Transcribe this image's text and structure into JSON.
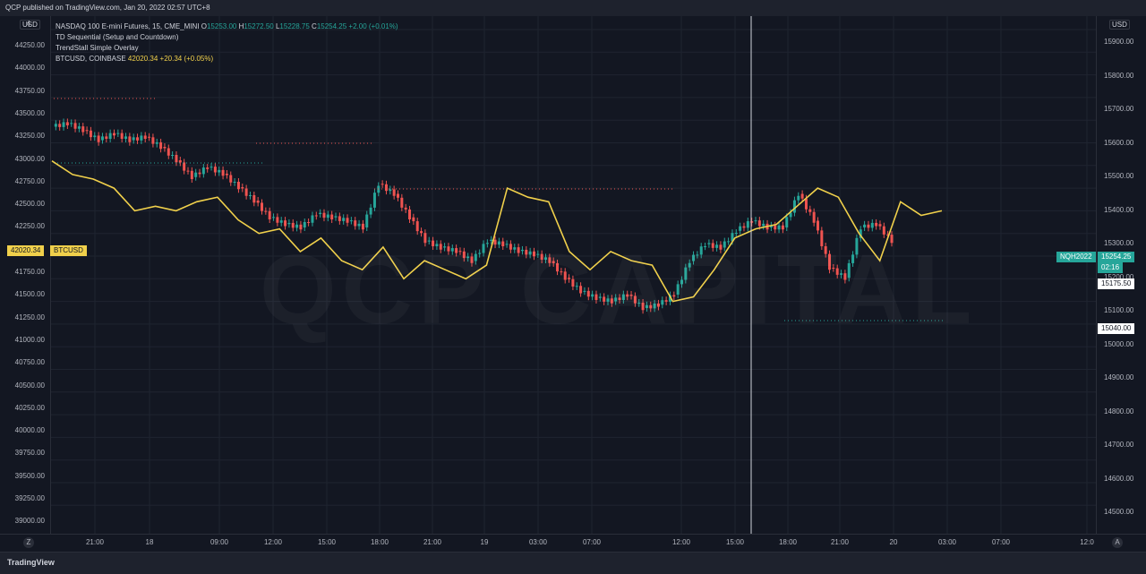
{
  "header": {
    "published": "QCP published on TradingView.com, Jan 20, 2022 02:57 UTC+8"
  },
  "legend": {
    "symbol": "NASDAQ 100 E-mini Futures, 15, CME_MINI",
    "o_label": "O",
    "o_value": "15253.00",
    "h_label": "H",
    "h_value": "15272.50",
    "l_label": "L",
    "l_value": "15228.75",
    "c_label": "C",
    "c_value": "15254.25",
    "change": "+2.00 (+0.01%)",
    "indicator1": "TD Sequential (Setup and Countdown)",
    "indicator2": "TrendStall Simple Overlay",
    "overlay_symbol": "BTCUSD, COINBASE",
    "overlay_value": "42020.34",
    "overlay_change": "+20.34 (+0.05%)"
  },
  "left_axis": {
    "currency": "USD",
    "top_partial": "4",
    "ticks": [
      "44250.00",
      "44000.00",
      "43750.00",
      "43500.00",
      "43250.00",
      "43000.00",
      "42750.00",
      "42500.00",
      "42250.00",
      "41750.00",
      "41500.00",
      "41250.00",
      "41000.00",
      "40750.00",
      "40500.00",
      "40250.00",
      "40000.00",
      "39750.00",
      "39500.00",
      "39250.00",
      "39000.00"
    ],
    "btc_price_label": "42020.34",
    "btc_symbol_label": "BTCUSD"
  },
  "right_axis": {
    "currency": "USD",
    "ticks": [
      "15900.00",
      "15800.00",
      "15700.00",
      "15600.00",
      "15500.00",
      "15400.00",
      "15300.00",
      "15200.00",
      "15100.00",
      "15000.00",
      "14900.00",
      "14800.00",
      "14700.00",
      "14600.00",
      "14500.00"
    ],
    "symbol_label": "NQH2022",
    "price_label": "15254.25",
    "countdown_label": "02:16",
    "marker_upper": "15175.50",
    "marker_lower": "15040.00"
  },
  "time_axis": {
    "ticks": [
      "21:00",
      "18",
      "09:00",
      "12:00",
      "15:00",
      "18:00",
      "21:00",
      "19",
      "03:00",
      "07:00",
      "12:00",
      "15:00",
      "18:00",
      "21:00",
      "20",
      "03:00",
      "07:00",
      "12:0"
    ],
    "left_button": "Z",
    "right_button": "A"
  },
  "watermark": "QCP CAPITAL",
  "footer": {
    "brand": "TradingView"
  },
  "colors": {
    "up": "#26a69a",
    "down": "#ef5350",
    "overlay": "#f0d04b",
    "background": "#131722"
  },
  "chart_data": {
    "type": "line",
    "title": "NASDAQ 100 E-mini Futures, 15, CME_MINI",
    "series": [
      {
        "name": "NQH2022",
        "values_desc": "candles",
        "values": [
          15600,
          15610,
          15590,
          15560,
          15580,
          15560,
          15570,
          15540,
          15500,
          15450,
          15480,
          15460,
          15420,
          15380,
          15330,
          15310,
          15300,
          15340,
          15330,
          15320,
          15300,
          15430,
          15400,
          15330,
          15260,
          15240,
          15230,
          15200,
          15260,
          15250,
          15230,
          15220,
          15200,
          15150,
          15110,
          15090,
          15080,
          15100,
          15060,
          15070,
          15100,
          15200,
          15250,
          15240,
          15290,
          15320,
          15300,
          15300,
          15400,
          15320,
          15180,
          15150,
          15300,
          15310,
          15260
        ]
      },
      {
        "name": "BTCUSD",
        "values": [
          42800,
          42650,
          42600,
          42500,
          42250,
          42300,
          42250,
          42350,
          42400,
          42150,
          42000,
          42050,
          41800,
          41950,
          41700,
          41600,
          41850,
          41500,
          41700,
          41600,
          41500,
          41650,
          42500,
          42400,
          42350,
          41800,
          41600,
          41800,
          41700,
          41650,
          41250,
          41300,
          41600,
          41950,
          42050,
          42100,
          42300,
          42500,
          42400,
          42000,
          41700,
          42350,
          42200,
          42250
        ]
      }
    ],
    "ylim_left": [
      39000,
      44500
    ],
    "ylim_right": [
      14500,
      15950
    ]
  }
}
